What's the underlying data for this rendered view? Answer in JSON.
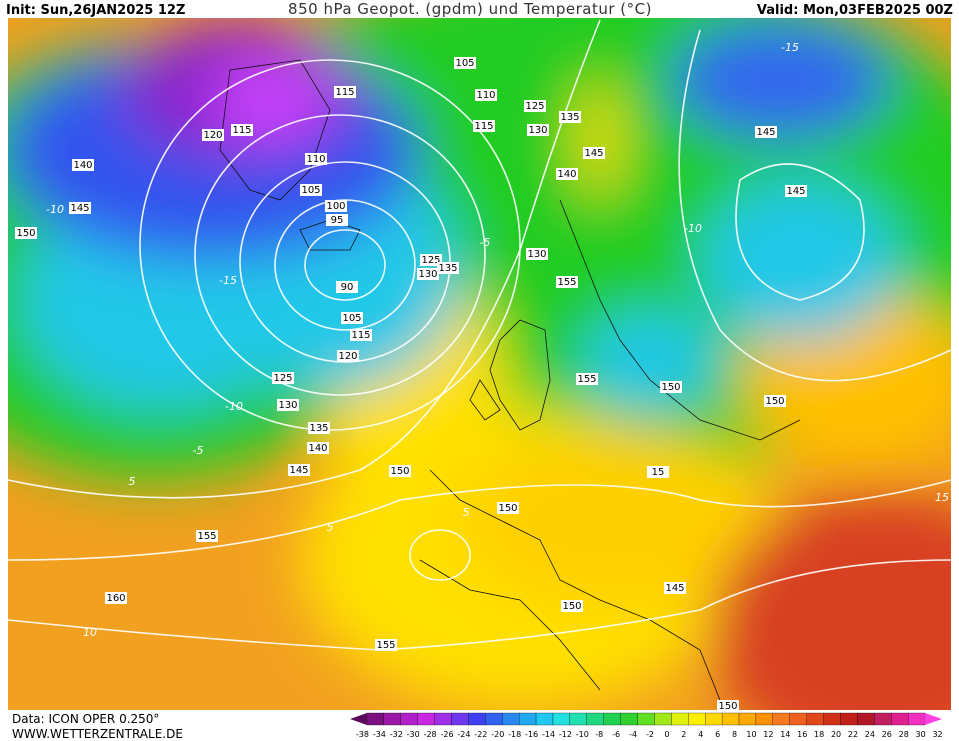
{
  "header": {
    "init": "Init: Sun,26JAN2025 12Z",
    "title": "850 hPa Geopot. (gpdm) und Temperatur (°C)",
    "valid": "Valid: Mon,03FEB2025 00Z"
  },
  "footer": {
    "data": "Data: ICON OPER 0.250°",
    "site": "WWW.WETTERZENTRALE.DE"
  },
  "contour_labels": [
    "105",
    "115",
    "110",
    "125",
    "120",
    "115",
    "135",
    "130",
    "115",
    "110",
    "145",
    "145",
    "140",
    "140",
    "105",
    "145",
    "100",
    "145",
    "95",
    "150",
    "130",
    "125",
    "130",
    "135",
    "155",
    "90",
    "105",
    "115",
    "120",
    "125",
    "155",
    "150",
    "150",
    "130",
    "135",
    "140",
    "145",
    "150",
    "15",
    "150",
    "155",
    "145",
    "150",
    "160",
    "155",
    "150"
  ],
  "temperature_labels": [
    "-15",
    "-15",
    "-10",
    "-10",
    "-10",
    "-5",
    "-5",
    "5",
    "5",
    "5",
    "10",
    "15"
  ],
  "scale": {
    "labels": [
      "-38",
      "-34",
      "-32",
      "-30",
      "-28",
      "-26",
      "-24",
      "-22",
      "-20",
      "-18",
      "-16",
      "-14",
      "-12",
      "-10",
      "-8",
      "-6",
      "-4",
      "-2",
      "0",
      "2",
      "4",
      "6",
      "8",
      "10",
      "12",
      "14",
      "16",
      "18",
      "20",
      "22",
      "24",
      "26",
      "28",
      "30",
      "32"
    ],
    "colors": [
      "#5a0a5a",
      "#7a1080",
      "#9a18a8",
      "#b020c8",
      "#c828e0",
      "#a030e8",
      "#7038ee",
      "#4040f0",
      "#3060f0",
      "#2888f0",
      "#20a8f0",
      "#20c8f0",
      "#20e0e0",
      "#20e0b0",
      "#20d880",
      "#20d050",
      "#30d030",
      "#60e020",
      "#a0e818",
      "#e0f010",
      "#fff000",
      "#ffd800",
      "#ffc000",
      "#ffa800",
      "#ff9000",
      "#f87820",
      "#f06020",
      "#e04818",
      "#d03018",
      "#c02018",
      "#b01828",
      "#c02060",
      "#e02090",
      "#f030c0",
      "#ff40e0"
    ]
  }
}
